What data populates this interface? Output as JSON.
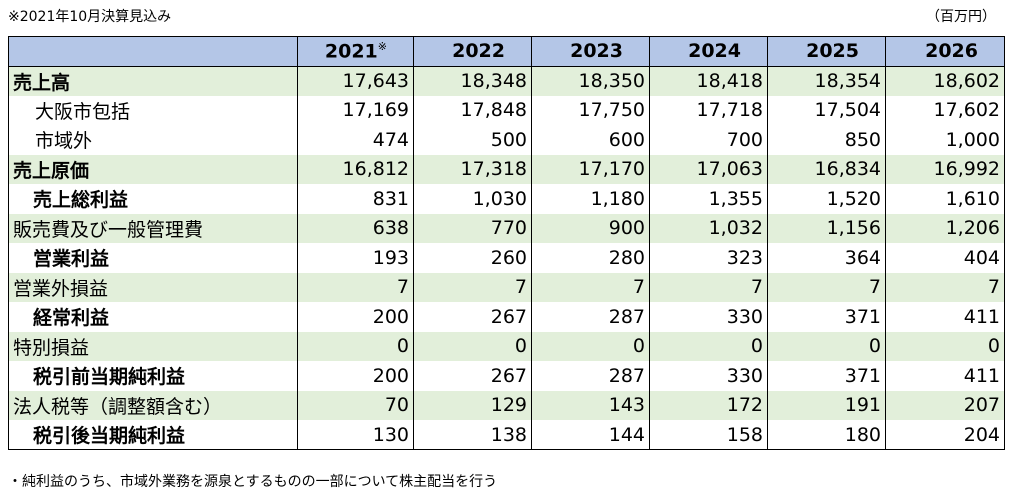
{
  "note_top": "※2021年10月決算見込み",
  "unit": "（百万円）",
  "header": {
    "years": [
      "2021",
      "2022",
      "2023",
      "2024",
      "2025",
      "2026"
    ],
    "first_mark": "※"
  },
  "rows": [
    {
      "label": "売上高",
      "values": [
        "17,643",
        "18,348",
        "18,350",
        "18,418",
        "18,354",
        "18,602"
      ]
    },
    {
      "label": "大阪市包括",
      "values": [
        "17,169",
        "17,848",
        "17,750",
        "17,718",
        "17,504",
        "17,602"
      ]
    },
    {
      "label": "市域外",
      "values": [
        "474",
        "500",
        "600",
        "700",
        "850",
        "1,000"
      ]
    },
    {
      "label": "売上原価",
      "values": [
        "16,812",
        "17,318",
        "17,170",
        "17,063",
        "16,834",
        "16,992"
      ]
    },
    {
      "label": "売上総利益",
      "values": [
        "831",
        "1,030",
        "1,180",
        "1,355",
        "1,520",
        "1,610"
      ]
    },
    {
      "label": "販売費及び一般管理費",
      "values": [
        "638",
        "770",
        "900",
        "1,032",
        "1,156",
        "1,206"
      ]
    },
    {
      "label": "営業利益",
      "values": [
        "193",
        "260",
        "280",
        "323",
        "364",
        "404"
      ]
    },
    {
      "label": "営業外損益",
      "values": [
        "7",
        "7",
        "7",
        "7",
        "7",
        "7"
      ]
    },
    {
      "label": "経常利益",
      "values": [
        "200",
        "267",
        "287",
        "330",
        "371",
        "411"
      ]
    },
    {
      "label": "特別損益",
      "values": [
        "0",
        "0",
        "0",
        "0",
        "0",
        "0"
      ]
    },
    {
      "label": "税引前当期純利益",
      "values": [
        "200",
        "267",
        "287",
        "330",
        "371",
        "411"
      ]
    },
    {
      "label": "法人税等（調整額含む）",
      "values": [
        "70",
        "129",
        "143",
        "172",
        "191",
        "207"
      ]
    },
    {
      "label": "税引後当期純利益",
      "values": [
        "130",
        "138",
        "144",
        "158",
        "180",
        "204"
      ]
    }
  ],
  "note_bottom": "・純利益のうち、市域外業務を源泉とするものの一部について株主配当を行う"
}
